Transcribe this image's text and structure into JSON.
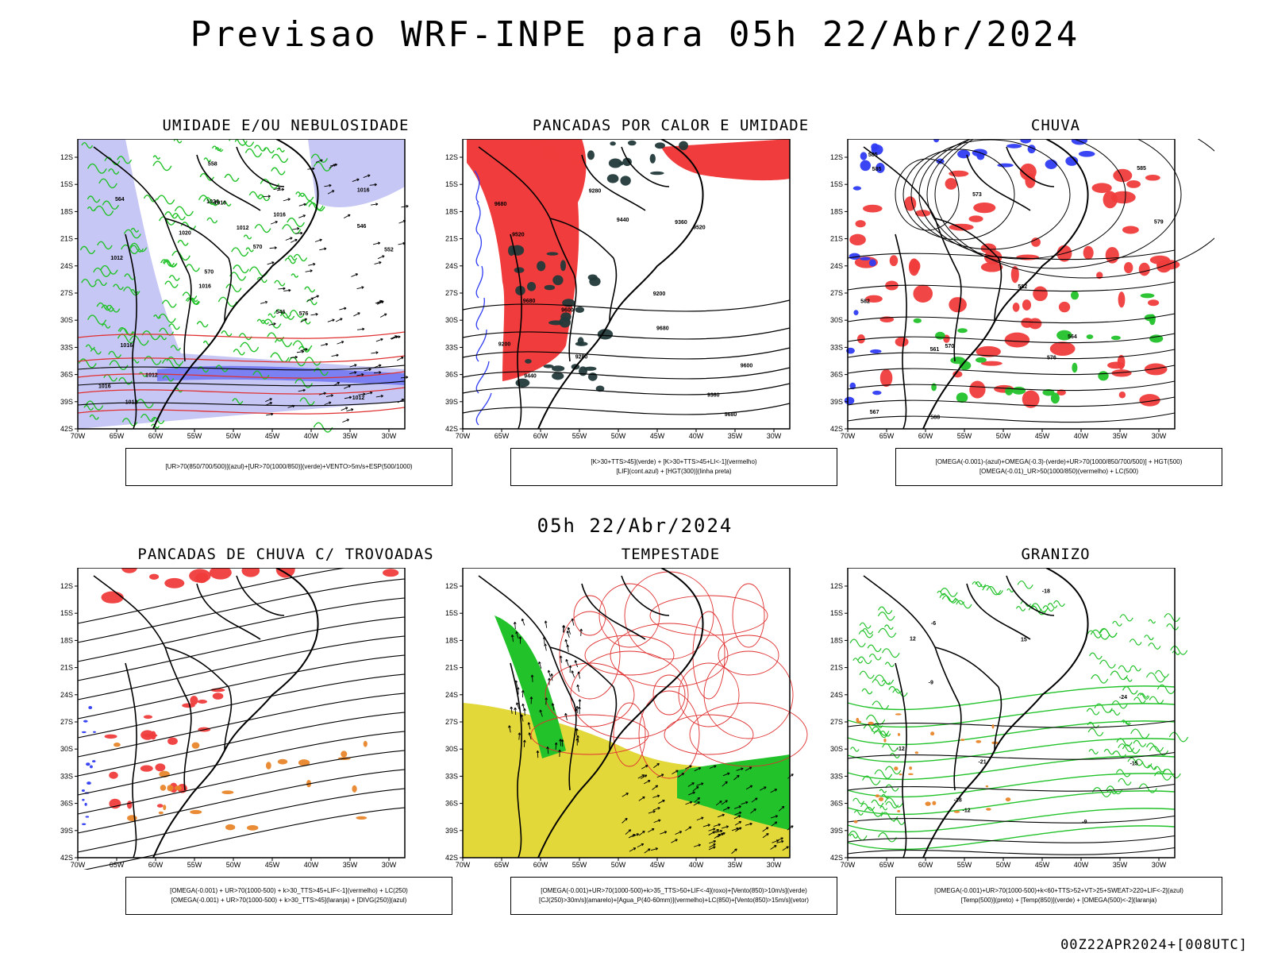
{
  "title": "Previsao WRF-INPE  para 05h 22/Abr/2024",
  "mid_date": "05h 22/Abr/2024",
  "footer": "00Z22APR2024+[008UTC]",
  "axes": {
    "lat_labels": [
      "12S",
      "15S",
      "18S",
      "21S",
      "24S",
      "27S",
      "30S",
      "33S",
      "36S",
      "39S",
      "42S"
    ],
    "lon_labels": [
      "70W",
      "65W",
      "60W",
      "55W",
      "50W",
      "45W",
      "40W",
      "35W",
      "30W"
    ]
  },
  "colors": {
    "blue": "#2f3cf2",
    "lavender": "#b9b9f2",
    "green": "#22c22a",
    "dkgreen": "#19a81e",
    "red": "#f03c3c",
    "orange": "#e8862a",
    "yellow": "#e3d83a",
    "teal": "#233a3a",
    "black": "#000000",
    "contour_red": "#e03030"
  },
  "panels": [
    {
      "title": "UMIDADE E/OU NEBULOSIDADE",
      "legend": [
        "[UR>70(850/700/500)](azul)+[UR>70(1000/850)](verde)+VENTO>5m/s+ESP(500/1000)"
      ],
      "contour_labels": [
        "1012",
        "1012",
        "1016",
        "1016",
        "1016",
        "1012",
        "1024",
        "1012",
        "1016",
        "1020",
        "1016",
        "1012",
        "1016",
        "570",
        "576",
        "564",
        "558",
        "552",
        "546",
        "546",
        "570"
      ]
    },
    {
      "title": "PANCADAS POR CALOR E UMIDADE",
      "legend": [
        "[K>30+TTS>45](verde) + [K>30+TTS>45+LI<-1](vermelho)",
        "[LIF](cont.azul) + [HGT(300)](linha preta)"
      ],
      "contour_labels": [
        "9680",
        "9680",
        "9680",
        "9680",
        "9600",
        "9520",
        "9440",
        "9600",
        "9520",
        "9440",
        "9360",
        "9360",
        "9280",
        "9280",
        "9200",
        "9200"
      ]
    },
    {
      "title": "CHUVA",
      "legend": [
        "[OMEGA(-0.001)-(azul)+OMEGA(-0.3)-(verde)+UR>70(1000/850/700/500)] + HGT(500)",
        "[OMEGA(-0.01)_UR>50(1000/850)(vermelho) + LC(500)"
      ],
      "contour_labels": [
        "585",
        "585",
        "582",
        "585",
        "579",
        "576",
        "573",
        "570",
        "567",
        "564",
        "561",
        "582",
        "588"
      ]
    },
    {
      "title": "PANCADAS DE CHUVA C/ TROVOADAS",
      "legend": [
        "[OMEGA(-0.001) + UR>70(1000-500) + k>30_TTS>45+LIF<-1](vermelho) + LC(250)",
        "[OMEGA(-0.001) + UR>70(1000-500) + k>30_TTS>45](laranja) + [DIVG(250)](azul)"
      ]
    },
    {
      "title": "TEMPESTADE",
      "legend": [
        "[OMEGA(-0.001)+UR>70(1000-500)+k>35_TTS>50+LIF<-4](roxo)+[Vento(850)>10m/s](verde)",
        "[CJ(250)>30m/s](amarelo)+[Agua_P(40-60mm)](vermelho)+LC(850)+[Vento(850)>15m/s](vetor)"
      ]
    },
    {
      "title": "GRANIZO",
      "legend": [
        "[OMEGA(-0.001)+UR>70(1000-500)+k<60+TTS>52+VT>25+SWEAT>220+LIF<-2](azul)",
        "[Temp(500)](preto) + [Temp(850)](verde) + [OMEGA(500)<-2](laranja)"
      ],
      "contour_labels": [
        "-9",
        "-12",
        "-12",
        "-15",
        "-18",
        "-18",
        "-21",
        "-24",
        "12",
        "15",
        "-6",
        "-9"
      ]
    }
  ]
}
